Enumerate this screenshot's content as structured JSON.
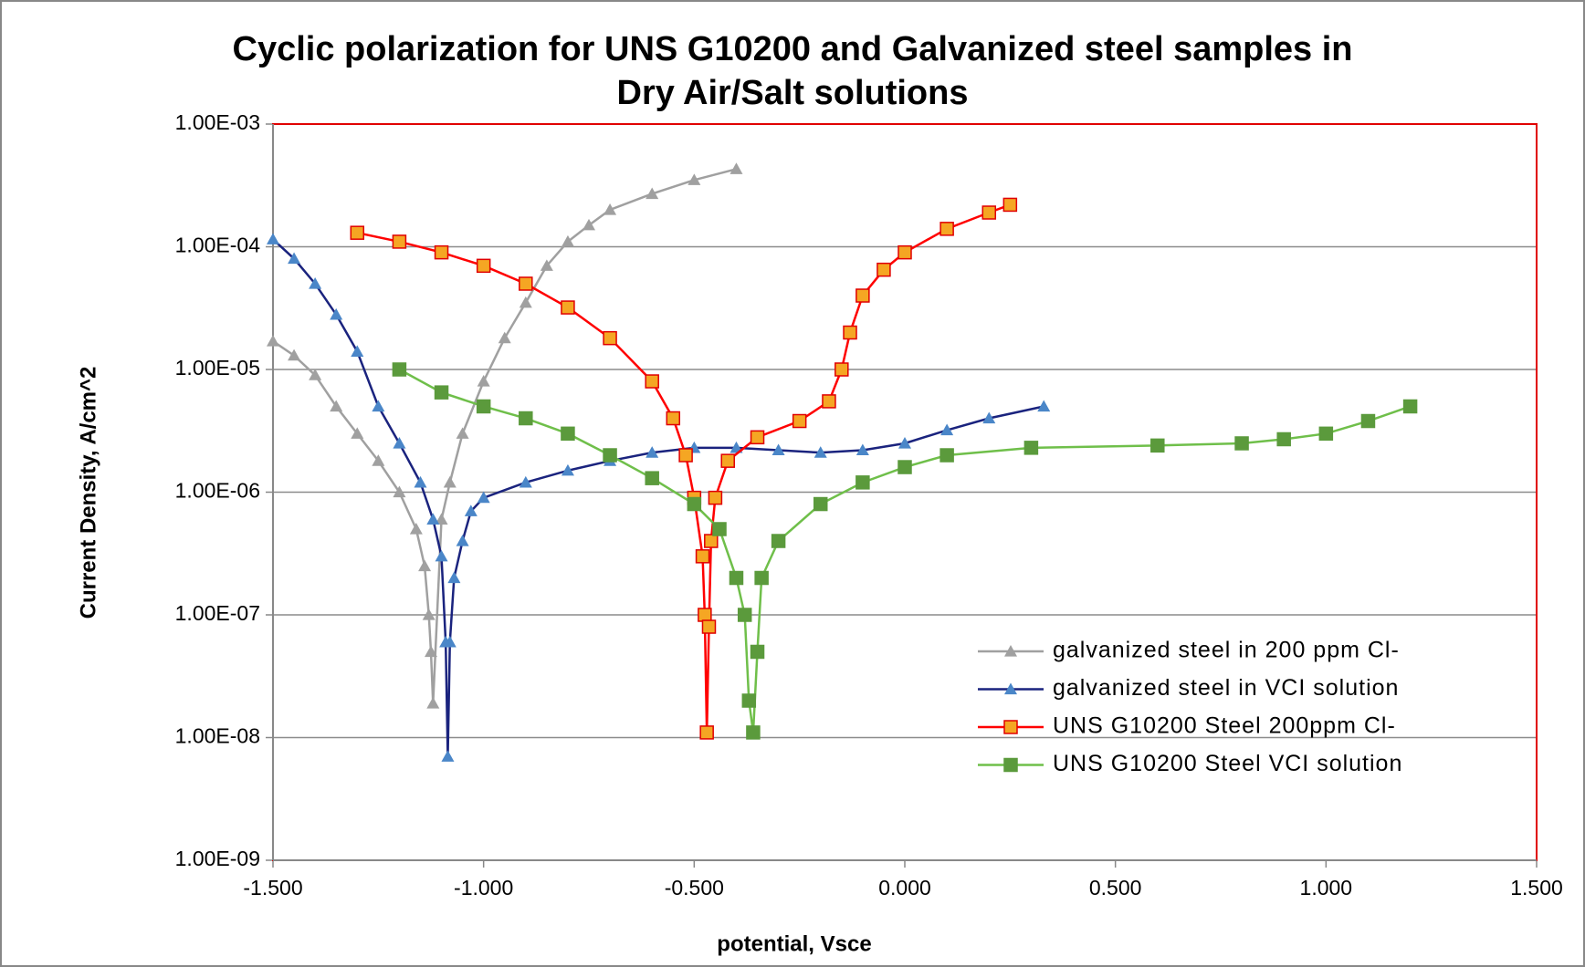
{
  "chart_data": {
    "type": "scatter",
    "title": "Cyclic polarization for UNS G10200 and Galvanized steel samples in Dry Air/Salt solutions",
    "xlabel": "potential, Vsce",
    "ylabel": "Current Density, A/cm^2",
    "log_y": true,
    "grid": true,
    "legend": "lower right",
    "xlim": [
      -1.5,
      1.5
    ],
    "xticks": [
      {
        "value": -1.5,
        "label": "-1.500"
      },
      {
        "value": -1.0,
        "label": "-1.000"
      },
      {
        "value": -0.5,
        "label": "-0.500"
      },
      {
        "value": 0,
        "label": "0.000"
      },
      {
        "value": 0.5,
        "label": "0.500"
      },
      {
        "value": 1.0,
        "label": "1.000"
      },
      {
        "value": 1.5,
        "label": "1.500"
      }
    ],
    "ylim": [
      1e-09,
      0.001
    ],
    "yticks": [
      {
        "value": 1e-09,
        "label": "1.00E-09"
      },
      {
        "value": 1e-08,
        "label": "1.00E-08"
      },
      {
        "value": 1e-07,
        "label": "1.00E-07"
      },
      {
        "value": 1e-06,
        "label": "1.00E-06"
      },
      {
        "value": 1e-05,
        "label": "1.00E-05"
      },
      {
        "value": 0.0001,
        "label": "1.00E-04"
      },
      {
        "value": 0.001,
        "label": "1.00E-03"
      }
    ],
    "series": [
      {
        "name": "galvanized steel in 200 ppm Cl-",
        "color": "#a0a0a0",
        "line_color": "#a0a0a0",
        "marker": "triangle",
        "x": [
          -1.5,
          -1.45,
          -1.4,
          -1.35,
          -1.3,
          -1.25,
          -1.2,
          -1.16,
          -1.14,
          -1.13,
          -1.125,
          -1.12,
          -1.1,
          -1.08,
          -1.05,
          -1.0,
          -0.95,
          -0.9,
          -0.85,
          -0.8,
          -0.75,
          -0.7,
          -0.6,
          -0.5,
          -0.4
        ],
        "values": [
          1.7e-05,
          1.3e-05,
          9e-06,
          5e-06,
          3e-06,
          1.8e-06,
          1e-06,
          5e-07,
          2.5e-07,
          1e-07,
          5e-08,
          1.9e-08,
          6e-07,
          1.2e-06,
          3e-06,
          8e-06,
          1.8e-05,
          3.5e-05,
          7e-05,
          0.00011,
          0.00015,
          0.0002,
          0.00027,
          0.00035,
          0.00043
        ]
      },
      {
        "name": "galvanized steel in VCI solution",
        "color": "#4a86c8",
        "line_color": "#1a237e",
        "marker": "triangle",
        "x": [
          -1.5,
          -1.45,
          -1.4,
          -1.35,
          -1.3,
          -1.25,
          -1.2,
          -1.15,
          -1.12,
          -1.1,
          -1.09,
          -1.085,
          -1.08,
          -1.07,
          -1.05,
          -1.03,
          -1.0,
          -0.9,
          -0.8,
          -0.7,
          -0.6,
          -0.5,
          -0.4,
          -0.3,
          -0.2,
          -0.1,
          0,
          0.1,
          0.2,
          0.33
        ],
        "values": [
          0.000115,
          8e-05,
          5e-05,
          2.8e-05,
          1.4e-05,
          5e-06,
          2.5e-06,
          1.2e-06,
          6e-07,
          3e-07,
          6e-08,
          7e-09,
          6e-08,
          2e-07,
          4e-07,
          7e-07,
          9e-07,
          1.2e-06,
          1.5e-06,
          1.8e-06,
          2.1e-06,
          2.3e-06,
          2.3e-06,
          2.2e-06,
          2.1e-06,
          2.2e-06,
          2.5e-06,
          3.2e-06,
          4e-06,
          5e-06
        ]
      },
      {
        "name": "UNS G10200 Steel 200ppm Cl-",
        "color": "#f5a623",
        "line_color": "#ff0000",
        "marker": "square",
        "x": [
          -1.3,
          -1.2,
          -1.1,
          -1.0,
          -0.9,
          -0.8,
          -0.7,
          -0.6,
          -0.55,
          -0.52,
          -0.5,
          -0.48,
          -0.475,
          -0.47,
          -0.465,
          -0.46,
          -0.45,
          -0.42,
          -0.35,
          -0.25,
          -0.18,
          -0.15,
          -0.13,
          -0.1,
          -0.05,
          0,
          0.1,
          0.2,
          0.25
        ],
        "values": [
          0.00013,
          0.00011,
          9e-05,
          7e-05,
          5e-05,
          3.2e-05,
          1.8e-05,
          8e-06,
          4e-06,
          2e-06,
          9e-07,
          3e-07,
          1e-07,
          1.1e-08,
          8e-08,
          4e-07,
          9e-07,
          1.8e-06,
          2.8e-06,
          3.8e-06,
          5.5e-06,
          1e-05,
          2e-05,
          4e-05,
          6.5e-05,
          9e-05,
          0.00014,
          0.00019,
          0.00022
        ]
      },
      {
        "name": "UNS G10200 Steel VCI solution",
        "color": "#5b9a3c",
        "line_color": "#6fbf4a",
        "marker": "square",
        "x": [
          -1.2,
          -1.1,
          -1.0,
          -0.9,
          -0.8,
          -0.7,
          -0.6,
          -0.5,
          -0.44,
          -0.4,
          -0.38,
          -0.37,
          -0.36,
          -0.35,
          -0.34,
          -0.3,
          -0.2,
          -0.1,
          0,
          0.1,
          0.3,
          0.6,
          0.8,
          0.9,
          1.0,
          1.1,
          1.2
        ],
        "values": [
          1e-05,
          6.5e-06,
          5e-06,
          4e-06,
          3e-06,
          2e-06,
          1.3e-06,
          8e-07,
          5e-07,
          2e-07,
          1e-07,
          2e-08,
          1.1e-08,
          5e-08,
          2e-07,
          4e-07,
          8e-07,
          1.2e-06,
          1.6e-06,
          2e-06,
          2.3e-06,
          2.4e-06,
          2.5e-06,
          2.7e-06,
          3e-06,
          3.8e-06,
          5e-06
        ]
      }
    ]
  }
}
